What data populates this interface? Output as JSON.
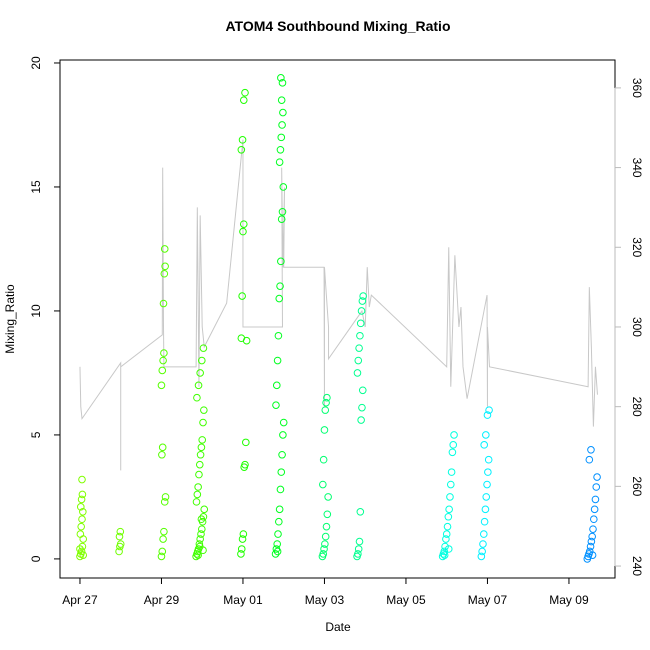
{
  "chart_data": {
    "type": "scatter",
    "title": "ATOM4 Southbound Mixing_Ratio",
    "x_label": "Date",
    "y_label": "Mixing_Ratio",
    "xlim": [
      -0.49,
      13.13
    ],
    "xticks": [
      {
        "value": 0,
        "label": "Apr 27"
      },
      {
        "value": 2,
        "label": "Apr 29"
      },
      {
        "value": 4,
        "label": "May 01"
      },
      {
        "value": 6,
        "label": "May 03"
      },
      {
        "value": 8,
        "label": "May 05"
      },
      {
        "value": 10,
        "label": "May 07"
      },
      {
        "value": 12,
        "label": "May 09"
      }
    ],
    "ylim": [
      -0.77,
      20.12
    ],
    "yticks": [
      0,
      5,
      10,
      15,
      20
    ],
    "y2lim": [
      237.0,
      367.0
    ],
    "y2ticks": [
      240,
      260,
      280,
      300,
      320,
      340,
      360
    ],
    "y2_color": "#bbbbbb",
    "series": [
      {
        "axis": "y2",
        "color": "#c8c8c8",
        "x": [
          0,
          0.02,
          0.05,
          1.0,
          1.0,
          1.0,
          2.02,
          2.03,
          2.05,
          2.06,
          2.85,
          2.88,
          2.92,
          2.95,
          3.0,
          3.05,
          3.6,
          4.0,
          4.0,
          4.97,
          4.95,
          4.98,
          5.02,
          5.0,
          5.99,
          6.0,
          6.0,
          6.1,
          6.1,
          6.92,
          7.0,
          7.05,
          7.1,
          7.15,
          9.0,
          9.05,
          9.1,
          9.2,
          9.3,
          9.35,
          9.4,
          9.5,
          9.99,
          10.0,
          10.0,
          10.05,
          12.47,
          12.5,
          12.55,
          12.6,
          12.65,
          12.7
        ],
        "values": [
          290,
          280,
          277,
          291,
          264,
          290,
          298,
          340,
          300,
          290,
          290,
          330,
          285,
          328,
          300,
          295,
          306,
          347,
          300,
          300,
          340,
          315,
          335,
          315,
          315,
          280,
          315,
          300,
          292,
          304,
          300,
          315,
          305,
          308,
          290,
          320,
          285,
          318,
          300,
          305,
          290,
          282,
          308,
          280,
          300,
          290,
          285,
          310,
          295,
          275,
          290,
          283
        ]
      },
      {
        "color": "#80ff00",
        "x": [
          0.0,
          0.02,
          0.04,
          0.06,
          0.08,
          0.01,
          0.03,
          0.05,
          0.07,
          0.02,
          0.04,
          0.06,
          0.05,
          0.08,
          0.0
        ],
        "values": [
          0.1,
          0.2,
          0.3,
          0.5,
          0.8,
          1.0,
          1.3,
          1.6,
          1.9,
          2.1,
          2.4,
          2.6,
          3.2,
          0.15,
          0.4
        ]
      },
      {
        "color": "#70ff00",
        "x": [
          0.96,
          0.98,
          1.0,
          0.97,
          0.99
        ],
        "values": [
          0.3,
          0.5,
          0.6,
          0.9,
          1.1
        ]
      },
      {
        "color": "#55ff00",
        "x": [
          2.0,
          2.02,
          2.04,
          2.06,
          2.08,
          2.1,
          2.01,
          2.03,
          2.0,
          2.02,
          2.04,
          2.06,
          2.05,
          2.07,
          2.09,
          2.08
        ],
        "values": [
          0.1,
          0.3,
          0.8,
          1.1,
          2.3,
          2.5,
          4.2,
          4.5,
          7.0,
          7.6,
          8.0,
          8.3,
          10.3,
          11.5,
          11.8,
          12.5
        ]
      },
      {
        "color": "#40ff00",
        "x": [
          2.85,
          2.87,
          2.89,
          2.91,
          2.93,
          2.95,
          2.97,
          2.99,
          3.01,
          3.03,
          3.05,
          2.86,
          2.88,
          2.9,
          2.92,
          2.94,
          2.96,
          2.98,
          3.0,
          3.02,
          3.04,
          2.87,
          2.91,
          2.95,
          2.99,
          3.03,
          2.9,
          2.94,
          2.98,
          3.02
        ],
        "values": [
          0.1,
          0.2,
          0.3,
          0.4,
          0.6,
          0.8,
          1.0,
          1.2,
          1.5,
          1.7,
          2.0,
          2.3,
          2.6,
          2.9,
          3.4,
          3.8,
          4.2,
          4.5,
          4.8,
          5.5,
          6.0,
          6.5,
          7.0,
          7.5,
          8.0,
          8.5,
          0.15,
          0.5,
          1.6,
          0.35
        ]
      },
      {
        "color": "#20ff00",
        "x": [
          3.95,
          3.97,
          3.99,
          4.01,
          4.03,
          4.05,
          4.07,
          4.09,
          3.96,
          3.98,
          4.0,
          4.02,
          3.96,
          3.99,
          4.02,
          4.05
        ],
        "values": [
          0.2,
          0.4,
          0.8,
          1.0,
          3.7,
          3.8,
          4.7,
          8.8,
          8.9,
          10.6,
          13.2,
          13.5,
          16.5,
          16.9,
          18.5,
          18.8
        ]
      },
      {
        "color": "#00ff20",
        "x": [
          4.8,
          4.82,
          4.84,
          4.86,
          4.88,
          4.9,
          4.92,
          4.94,
          4.96,
          4.98,
          5.0,
          4.81,
          4.83,
          4.85,
          4.87,
          4.89,
          4.91,
          4.93,
          4.95,
          4.97,
          4.99,
          4.9,
          4.92,
          4.94,
          4.96,
          4.98,
          4.95,
          4.97,
          4.93,
          4.85
        ],
        "values": [
          0.2,
          0.4,
          0.6,
          1.0,
          1.5,
          2.0,
          2.8,
          3.5,
          4.2,
          5.0,
          5.5,
          6.2,
          7.0,
          8.0,
          9.0,
          10.5,
          11.0,
          12.0,
          13.7,
          14.0,
          15.0,
          16.0,
          16.5,
          17.0,
          17.5,
          18.0,
          18.5,
          19.2,
          19.4,
          0.3
        ]
      },
      {
        "color": "#00ff70",
        "x": [
          5.95,
          5.97,
          5.99,
          6.01,
          6.03,
          6.05,
          6.07,
          6.09,
          5.96,
          5.98,
          6.0,
          6.02,
          6.04,
          6.06
        ],
        "values": [
          0.1,
          0.2,
          0.4,
          0.6,
          0.9,
          1.3,
          1.8,
          2.5,
          3.0,
          4.0,
          5.2,
          6.0,
          6.3,
          6.5
        ]
      },
      {
        "color": "#00ff90",
        "x": [
          6.8,
          6.82,
          6.84,
          6.86,
          6.88,
          6.9,
          6.92,
          6.94,
          6.81,
          6.83,
          6.85,
          6.87,
          6.89,
          6.91,
          6.93,
          6.95
        ],
        "values": [
          0.1,
          0.2,
          0.4,
          0.7,
          1.9,
          5.6,
          6.1,
          6.8,
          7.5,
          8.0,
          8.5,
          9.0,
          9.5,
          10.0,
          10.4,
          10.6
        ]
      },
      {
        "color": "#00ffe0",
        "x": [
          8.9,
          8.92,
          8.94,
          8.96,
          8.98,
          9.0,
          9.02,
          9.04,
          9.06,
          9.08,
          9.1,
          9.12,
          9.14,
          9.16,
          9.18,
          8.95,
          9.05
        ],
        "values": [
          0.1,
          0.2,
          0.3,
          0.5,
          0.8,
          1.0,
          1.3,
          1.7,
          2.0,
          2.5,
          3.0,
          3.5,
          4.3,
          4.6,
          5.0,
          0.15,
          0.4
        ]
      },
      {
        "color": "#00f0ff",
        "x": [
          9.85,
          9.87,
          9.89,
          9.91,
          9.93,
          9.95,
          9.97,
          9.99,
          10.01,
          10.03,
          9.92,
          9.96,
          10.0,
          10.04
        ],
        "values": [
          0.1,
          0.3,
          0.6,
          1.0,
          1.5,
          2.0,
          2.5,
          3.0,
          3.5,
          4.0,
          4.6,
          5.0,
          5.8,
          6.0
        ]
      },
      {
        "color": "#0090ff",
        "x": [
          12.45,
          12.47,
          12.49,
          12.51,
          12.53,
          12.55,
          12.57,
          12.59,
          12.61,
          12.63,
          12.65,
          12.67,
          12.69,
          12.5,
          12.54,
          12.58
        ],
        "values": [
          0.0,
          0.1,
          0.2,
          0.3,
          0.5,
          0.7,
          0.9,
          1.2,
          1.6,
          2.0,
          2.4,
          2.9,
          3.3,
          4.0,
          4.4,
          0.15
        ]
      }
    ]
  }
}
